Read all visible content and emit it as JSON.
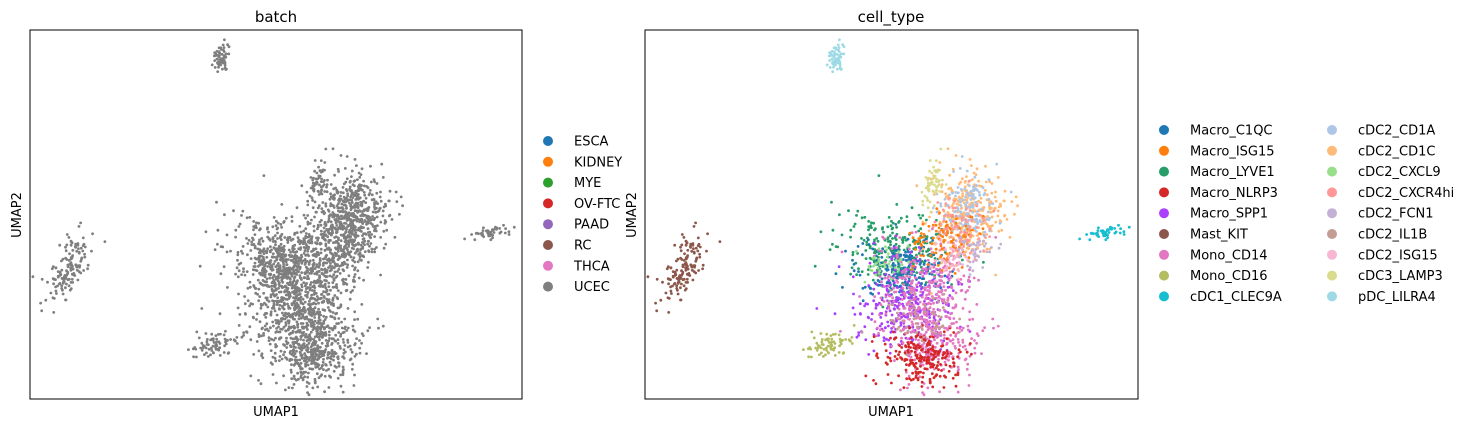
{
  "chart_data": [
    {
      "type": "scatter",
      "title": "batch",
      "xlabel": "UMAP1",
      "ylabel": "UMAP2",
      "grid": false,
      "ticks": "none",
      "legend_position": "right",
      "legend": [
        {
          "label": "ESCA",
          "color": "#1f77b4"
        },
        {
          "label": "KIDNEY",
          "color": "#ff7f0e"
        },
        {
          "label": "MYE",
          "color": "#2ca02c"
        },
        {
          "label": "OV-FTC",
          "color": "#d62728"
        },
        {
          "label": "PAAD",
          "color": "#9467bd"
        },
        {
          "label": "RC",
          "color": "#8c564b"
        },
        {
          "label": "THCA",
          "color": "#e377c2"
        },
        {
          "label": "UCEC",
          "color": "#7f7f7f"
        }
      ],
      "point_color": "#7f7f7f"
    },
    {
      "type": "scatter",
      "title": "cell_type",
      "xlabel": "UMAP1",
      "ylabel": "UMAP2",
      "grid": false,
      "ticks": "none",
      "legend_position": "right",
      "legend_columns": 2,
      "legend": [
        {
          "label": "Macro_C1QC",
          "color": "#1f77b4"
        },
        {
          "label": "Macro_ISG15",
          "color": "#ff7f0e"
        },
        {
          "label": "Macro_LYVE1",
          "color": "#279e68"
        },
        {
          "label": "Macro_NLRP3",
          "color": "#d62728"
        },
        {
          "label": "Macro_SPP1",
          "color": "#aa40fc"
        },
        {
          "label": "Mast_KIT",
          "color": "#8c564b"
        },
        {
          "label": "Mono_CD14",
          "color": "#e377c2"
        },
        {
          "label": "Mono_CD16",
          "color": "#b5bd61"
        },
        {
          "label": "cDC1_CLEC9A",
          "color": "#17becf"
        },
        {
          "label": "cDC2_CD1A",
          "color": "#aec7e8"
        },
        {
          "label": "cDC2_CD1C",
          "color": "#ffbb78"
        },
        {
          "label": "cDC2_CXCL9",
          "color": "#98df8a"
        },
        {
          "label": "cDC2_CXCR4hi",
          "color": "#ff9896"
        },
        {
          "label": "cDC2_FCN1",
          "color": "#c5b0d5"
        },
        {
          "label": "cDC2_IL1B",
          "color": "#c49c94"
        },
        {
          "label": "cDC2_ISG15",
          "color": "#f7b6d2"
        },
        {
          "label": "cDC3_LAMP3",
          "color": "#dbdb8d"
        },
        {
          "label": "pDC_LILRA4",
          "color": "#9edae5"
        }
      ]
    }
  ]
}
